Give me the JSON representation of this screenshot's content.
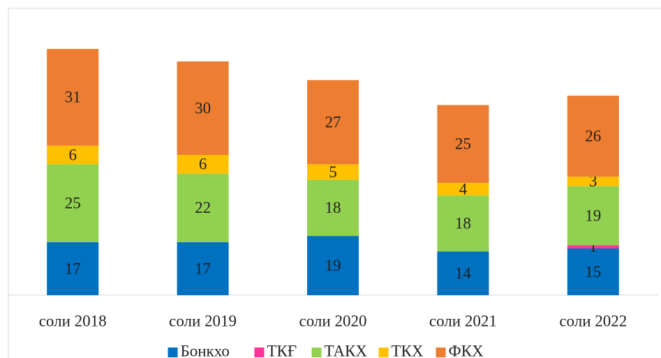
{
  "chart_data": {
    "type": "stacked_bar",
    "categories": [
      "соли 2018",
      "соли 2019",
      "соли 2020",
      "соли 2021",
      "соли 2022"
    ],
    "series": [
      {
        "name": "Бонкхо",
        "color": "#0070c0",
        "values": [
          17,
          17,
          19,
          14,
          15
        ]
      },
      {
        "name": "ТКҒ",
        "color": "#ff3399",
        "values": [
          null,
          null,
          null,
          null,
          1
        ]
      },
      {
        "name": "ТАКХ",
        "color": "#92d050",
        "values": [
          25,
          22,
          18,
          18,
          19
        ]
      },
      {
        "name": "ТКХ",
        "color": "#ffc000",
        "values": [
          6,
          6,
          5,
          4,
          3
        ]
      },
      {
        "name": "ФКХ",
        "color": "#ed7d31",
        "values": [
          31,
          30,
          27,
          25,
          26
        ]
      }
    ],
    "ylim": [
      0,
      90
    ],
    "legend": "bottom"
  }
}
